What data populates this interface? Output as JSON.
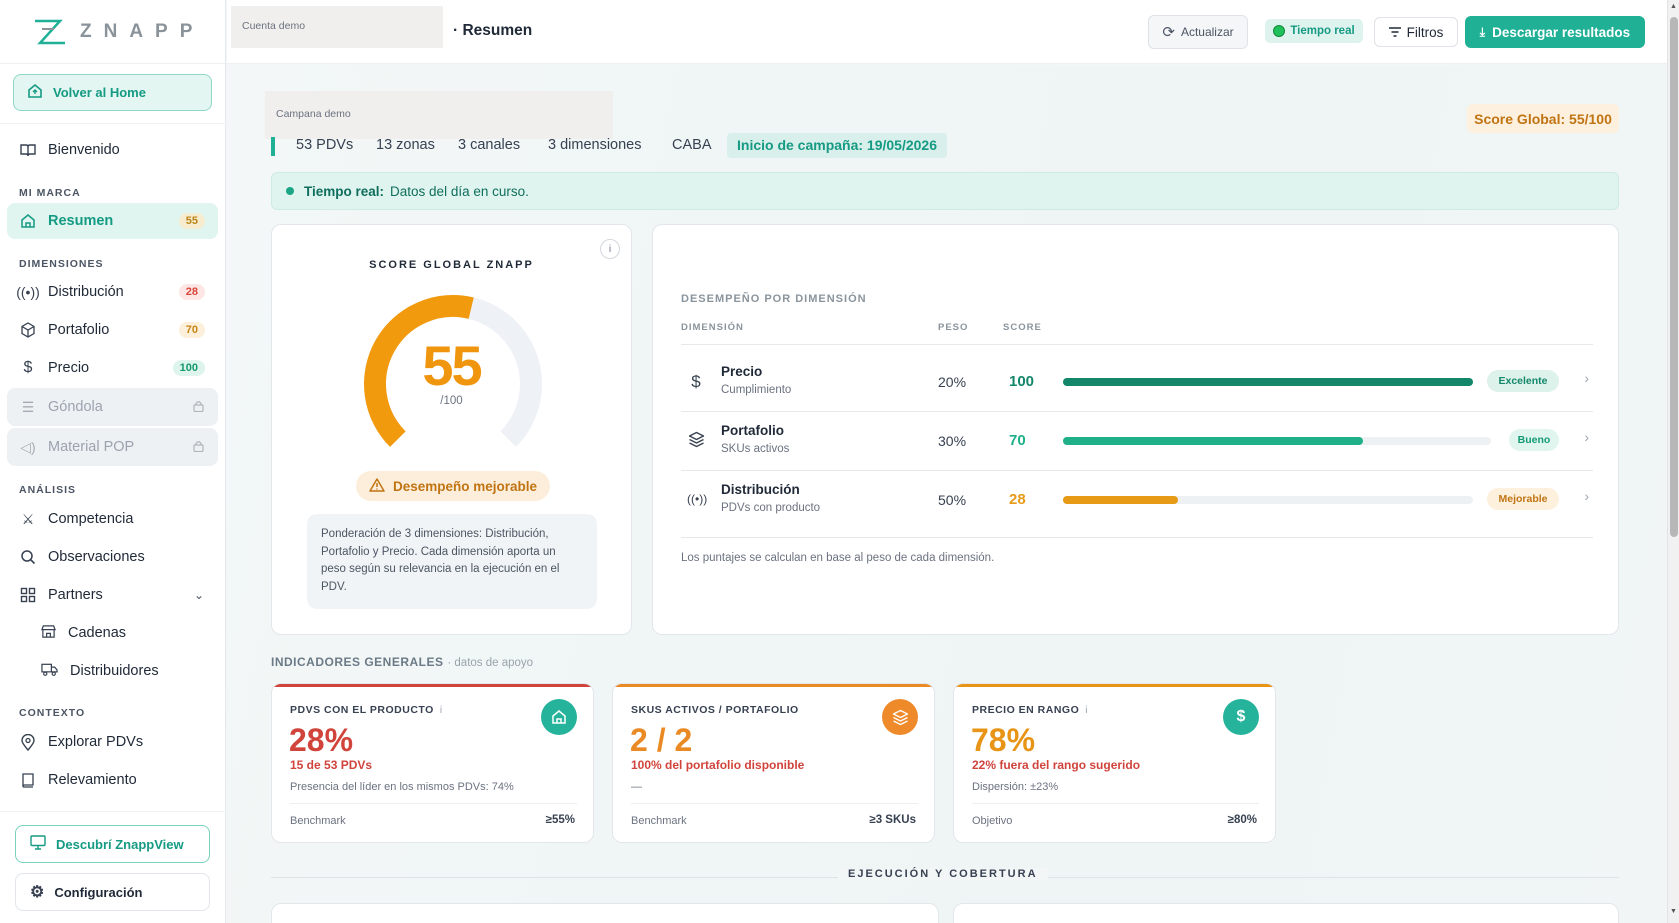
{
  "brand": {
    "logo_text": "ZNAPP",
    "accent": "#1fb096"
  },
  "sidebar": {
    "home_label": "Volver al Home",
    "welcome": "Bienvenido",
    "sections": {
      "mi_marca": "MI MARCA",
      "dimensiones": "DIMENSIONES",
      "analisis": "ANÁLISIS",
      "contexto": "CONTEXTO"
    },
    "resumen": {
      "label": "Resumen",
      "badge": "55"
    },
    "dimensions": [
      {
        "label": "Distribución",
        "badge": "28",
        "icon": "broadcast-icon"
      },
      {
        "label": "Portafolio",
        "badge": "70",
        "icon": "cube-icon"
      },
      {
        "label": "Precio",
        "badge": "100",
        "icon": "dollar-icon"
      },
      {
        "label": "Góndola",
        "locked": true,
        "icon": "shelf-icon"
      },
      {
        "label": "Material POP",
        "locked": true,
        "icon": "megaphone-icon"
      }
    ],
    "analysis": [
      {
        "label": "Competencia",
        "icon": "swords-icon"
      },
      {
        "label": "Observaciones",
        "icon": "search-icon"
      },
      {
        "label": "Partners",
        "icon": "grid-icon"
      }
    ],
    "partners_sub": [
      {
        "label": "Cadenas",
        "icon": "store-icon"
      },
      {
        "label": "Distribuidores",
        "icon": "truck-icon"
      }
    ],
    "context": [
      {
        "label": "Explorar PDVs",
        "icon": "pin-icon"
      },
      {
        "label": "Relevamiento",
        "icon": "book-icon"
      }
    ],
    "znapp_view": "Descubrí ZnappView",
    "config": "Configuración"
  },
  "topbar": {
    "account_placeholder": "Cuenta demo",
    "title": "· Resumen",
    "refresh": "Actualizar",
    "realtime": "Tiempo real",
    "filters": "Filtros",
    "download": "Descargar resultados"
  },
  "campaign": {
    "placeholder": "Campana demo",
    "score_global": "Score Global: 55/100",
    "stats": [
      "53 PDVs",
      "13 zonas",
      "3 canales",
      "3 dimensiones",
      "CABA"
    ],
    "start": "Inicio de campaña: 19/05/2026"
  },
  "realtime_banner": {
    "label": "Tiempo real:",
    "text": "Datos del día en curso."
  },
  "gauge": {
    "title": "SCORE GLOBAL ZNAPP",
    "value": "55",
    "value_fraction": 0.55,
    "denominator": "/100",
    "status": "Desempeño mejorable",
    "note": "Ponderación de 3 dimensiones: Distribución, Portafolio y Precio. Cada dimensión aporta un peso según su relevancia en la ejecución en el PDV."
  },
  "dimension_table": {
    "title": "DESEMPEÑO POR DIMENSIÓN",
    "headers": {
      "dim": "DIMENSIÓN",
      "peso": "PESO",
      "score": "SCORE"
    },
    "rows": [
      {
        "name": "Precio",
        "sub": "Cumplimiento",
        "peso": "20%",
        "score": "100",
        "fraction": 1.0,
        "tag": "Excelente",
        "color": "#14866a",
        "tag_bg": "#ddf2ea",
        "tag_fg": "#14866a",
        "icon": "dollar-icon"
      },
      {
        "name": "Portafolio",
        "sub": "SKUs activos",
        "peso": "30%",
        "score": "70",
        "fraction": 0.7,
        "tag": "Bueno",
        "color": "#1fb08a",
        "tag_bg": "#e0f5ee",
        "tag_fg": "#139a74",
        "icon": "layers-icon"
      },
      {
        "name": "Distribución",
        "sub": "PDVs con producto",
        "peso": "50%",
        "score": "28",
        "fraction": 0.28,
        "tag": "Mejorable",
        "color": "#e69a16",
        "tag_bg": "#fdf0dc",
        "tag_fg": "#c07412",
        "icon": "broadcast-icon"
      }
    ],
    "footnote": "Los puntajes se calculan en base al peso de cada dimensión."
  },
  "indicators": {
    "title": "INDICADORES GENERALES",
    "subtitle": "· datos de apoyo",
    "cards": [
      {
        "label": "PDVS CON EL PRODUCTO",
        "info": "i",
        "value": "28%",
        "sub": "15 de 53 PDVs",
        "note": "Presencia del líder en los mismos PDVs: 74%",
        "bench_label": "Benchmark",
        "bench_value": "≥55%",
        "color": "#d0443c",
        "icon": "store-icon",
        "icon_bg": "#25b39b"
      },
      {
        "label": "SKUS ACTIVOS / PORTAFOLIO",
        "info": "",
        "value": "2 / 2",
        "sub": "100% del portafolio disponible",
        "note": "—",
        "bench_label": "Benchmark",
        "bench_value": "≥3 SKUs",
        "color": "#e98a25",
        "sub_color": "#d0443c",
        "icon": "layers-icon",
        "icon_bg": "#ee8a2a"
      },
      {
        "label": "PRECIO EN RANGO",
        "info": "i",
        "value": "78%",
        "sub": "22% fuera del rango sugerido",
        "note": "Dispersión: ±23%",
        "bench_label": "Objetivo",
        "bench_value": "≥80%",
        "color": "#e89416",
        "sub_color": "#d0443c",
        "icon": "dollar-icon",
        "icon_bg": "#25b39b"
      }
    ]
  },
  "execution_title": "EJECUCIÓN Y COBERTURA"
}
